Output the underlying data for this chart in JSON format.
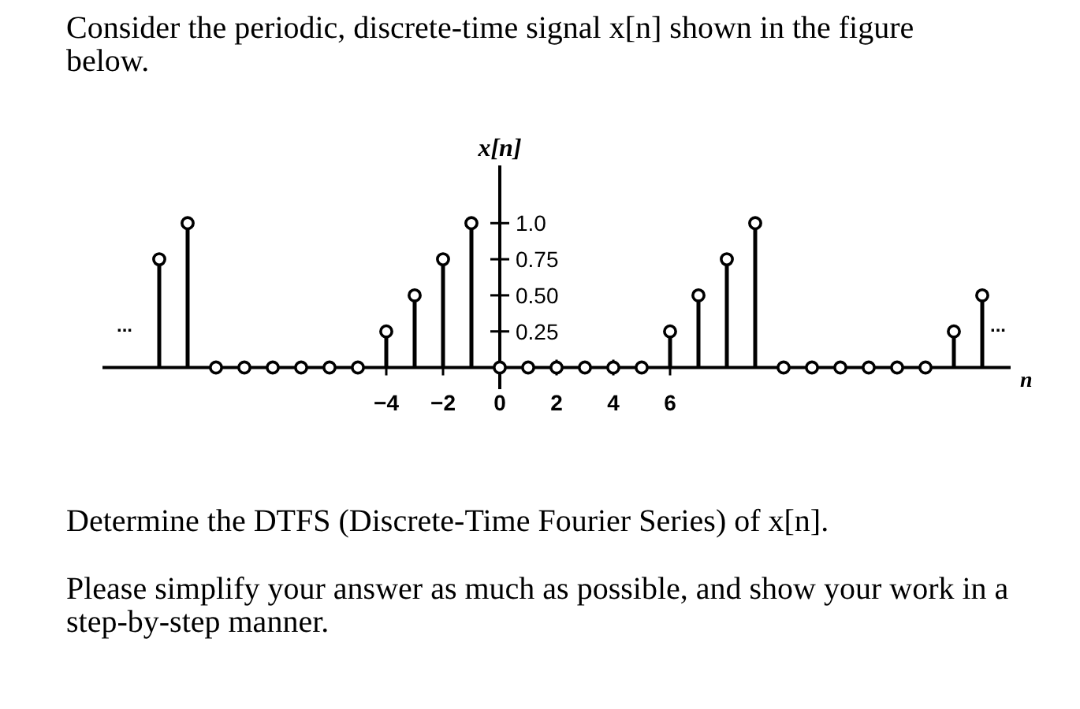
{
  "chart_data": {
    "type": "lollipop",
    "title": "Consider the periodic, discrete-time signal x[n] shown in the figure below.",
    "xlabel": "n",
    "ylabel": "x[n]",
    "x": [
      -12,
      -11,
      -10,
      -9,
      -8,
      -7,
      -6,
      -5,
      -4,
      -3,
      -2,
      -1,
      0,
      1,
      2,
      3,
      4,
      5,
      6,
      7,
      8,
      9,
      10,
      11,
      12,
      13,
      14,
      15,
      16,
      17
    ],
    "values": [
      0.75,
      1,
      0,
      0,
      0,
      0,
      0,
      0,
      0.25,
      0.5,
      0.75,
      1,
      0,
      0,
      0,
      0,
      0,
      0,
      0.25,
      0.5,
      0.75,
      1,
      0,
      0,
      0,
      0,
      0,
      0,
      0.25,
      0.5
    ],
    "color": "#000000",
    "marker": "circle",
    "xlim": [
      -14,
      18
    ],
    "ylim": [
      -0.15,
      1.4
    ],
    "xticks": [
      -4,
      -2,
      0,
      2,
      4,
      6
    ],
    "yticks": [
      {
        "value": 1,
        "label": "1.0"
      },
      0.75,
      {
        "value": 0.5,
        "label": "0.50"
      },
      0.25
    ],
    "grid": false,
    "annotations": [
      "...",
      "...",
      "Determine the DTFS (Discrete-Time Fourier Series) of x[n].",
      "Please simplify your answer as much as possible, and show your work in a step-by-step manner."
    ]
  }
}
